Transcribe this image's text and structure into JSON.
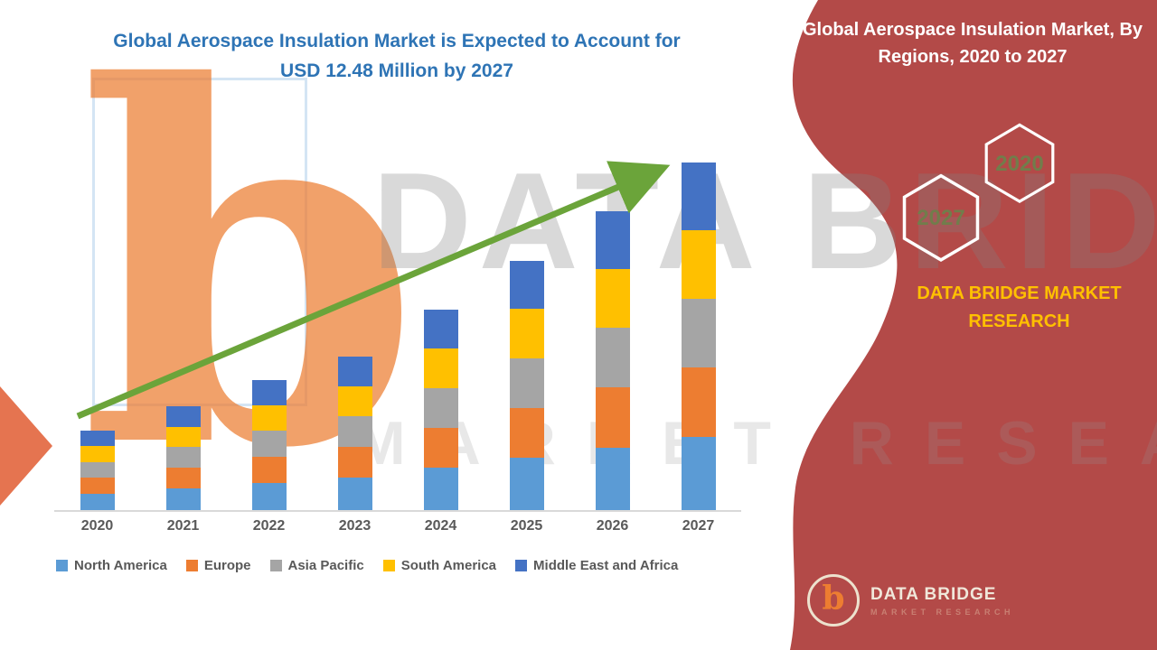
{
  "page": {
    "title_line1": "Global Aerospace Insulation Market is Expected to Account for",
    "title_line2": "USD 12.48 Million by 2027"
  },
  "side_panel": {
    "title": "Global Aerospace Insulation Market, By Regions, 2020 to 2027",
    "hexagons": [
      {
        "label": "2020"
      },
      {
        "label": "2027"
      }
    ],
    "brand_line1": "DATA BRIDGE MARKET",
    "brand_line2": "RESEARCH",
    "logo": {
      "monogram": "b",
      "name": "DATA BRIDGE",
      "sub": "MARKET RESEARCH"
    },
    "panel_color": "#B34A48",
    "brand_color": "#FFC000"
  },
  "watermark": {
    "line1": "DATA BRIDGE",
    "line2": "MARKET RESEARCH",
    "monogram": "b"
  },
  "chart_data": {
    "type": "bar",
    "stacked": true,
    "title": "Global Aerospace Insulation Market is Expected to Account for USD 12.48 Million by 2027",
    "unit": "USD Million",
    "categories": [
      "2020",
      "2021",
      "2022",
      "2023",
      "2024",
      "2025",
      "2026",
      "2027"
    ],
    "series": [
      {
        "name": "North America",
        "color": "#5B9BD5",
        "values": [
          0.6,
          0.78,
          0.98,
          1.16,
          1.51,
          1.88,
          2.25,
          2.62
        ]
      },
      {
        "name": "Europe",
        "color": "#ED7D31",
        "values": [
          0.57,
          0.75,
          0.94,
          1.11,
          1.44,
          1.8,
          2.15,
          2.5
        ]
      },
      {
        "name": "Asia Pacific",
        "color": "#A5A5A5",
        "values": [
          0.56,
          0.74,
          0.93,
          1.1,
          1.43,
          1.78,
          2.14,
          2.48
        ]
      },
      {
        "name": "South America",
        "color": "#FFC000",
        "values": [
          0.56,
          0.73,
          0.92,
          1.09,
          1.42,
          1.77,
          2.12,
          2.46
        ]
      },
      {
        "name": "Middle East and Africa",
        "color": "#4472C4",
        "values": [
          0.55,
          0.72,
          0.9,
          1.06,
          1.39,
          1.72,
          2.06,
          2.42
        ]
      }
    ],
    "totals": [
      2.84,
      3.72,
      4.67,
      5.52,
      7.19,
      8.95,
      10.72,
      12.48
    ],
    "ylim": [
      0,
      12.48
    ],
    "grid": false,
    "legend_position": "bottom",
    "trend_arrow": true,
    "trend_arrow_color": "#6BA43A"
  }
}
